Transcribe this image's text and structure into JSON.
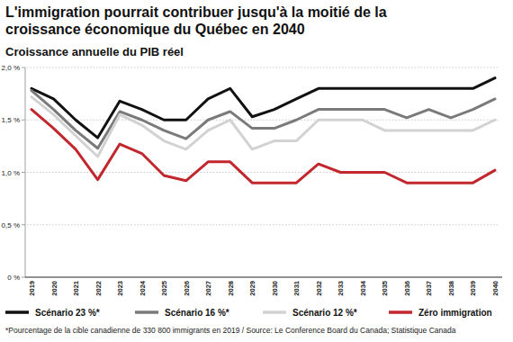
{
  "chart_data": {
    "type": "line",
    "title": "L'immigration pourrait contribuer jusqu'à la moitié de la croissance économique du Québec en 2040",
    "subtitle": "Croissance annuelle du PIB réel",
    "annotations": [
      "*Pourcentage de la cible canadienne de 330 800 immigrants en 2019 / Source: Le Conference Board du Canada; Statistique Canada"
    ],
    "categories": [
      "2019",
      "2020",
      "2021",
      "2022",
      "2023",
      "2024",
      "2025",
      "2026",
      "2027",
      "2028",
      "2029",
      "2030",
      "2031",
      "2032",
      "2033",
      "2034",
      "2035",
      "2036",
      "2037",
      "2038",
      "2039",
      "2040"
    ],
    "series": [
      {
        "name": "Scénario 23 %*",
        "color": "#111111",
        "values": [
          1.8,
          1.7,
          1.5,
          1.33,
          1.68,
          1.6,
          1.5,
          1.5,
          1.7,
          1.8,
          1.53,
          1.6,
          1.7,
          1.8,
          1.8,
          1.8,
          1.8,
          1.8,
          1.8,
          1.8,
          1.8,
          1.9
        ]
      },
      {
        "name": "Scénario 16 %*",
        "color": "#7a7a7a",
        "values": [
          1.78,
          1.6,
          1.4,
          1.23,
          1.58,
          1.5,
          1.4,
          1.32,
          1.5,
          1.58,
          1.42,
          1.42,
          1.5,
          1.6,
          1.6,
          1.6,
          1.6,
          1.52,
          1.6,
          1.52,
          1.6,
          1.7
        ]
      },
      {
        "name": "Scénario 12 %*",
        "color": "#d2d2d2",
        "values": [
          1.72,
          1.55,
          1.35,
          1.15,
          1.55,
          1.45,
          1.3,
          1.22,
          1.4,
          1.5,
          1.22,
          1.3,
          1.3,
          1.5,
          1.5,
          1.5,
          1.4,
          1.4,
          1.4,
          1.4,
          1.4,
          1.5
        ]
      },
      {
        "name": "Zéro immigration",
        "color": "#c1272d",
        "values": [
          1.6,
          1.42,
          1.22,
          0.93,
          1.27,
          1.18,
          0.97,
          0.92,
          1.1,
          1.1,
          0.9,
          0.9,
          0.9,
          1.08,
          1.0,
          1.0,
          1.0,
          0.9,
          0.9,
          0.9,
          0.9,
          1.02
        ]
      }
    ],
    "ylim": [
      0,
      2.0
    ],
    "yticks": [
      {
        "value": 0,
        "label": "0 %"
      },
      {
        "value": 0.5,
        "label": "0,5 %"
      },
      {
        "value": 1.0,
        "label": "1,0 %"
      },
      {
        "value": 1.5,
        "label": "1,5 %"
      },
      {
        "value": 2.0,
        "label": "2,0 %"
      }
    ],
    "grid": true,
    "legend": "bottom"
  }
}
